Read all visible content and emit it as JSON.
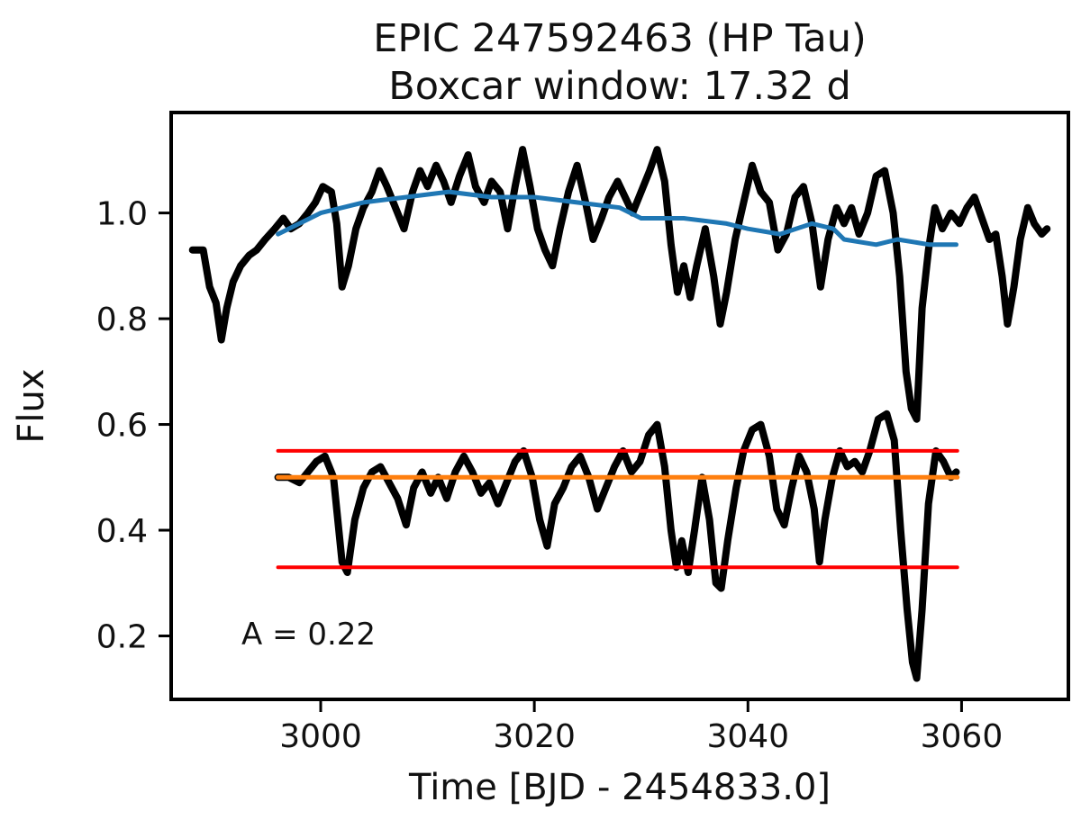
{
  "chart_data": {
    "type": "line",
    "title_lines": [
      "EPIC 247592463 (HP Tau)",
      "Boxcar window: 17.32 d"
    ],
    "xlabel": "Time [BJD - 2454833.0]",
    "ylabel": "Flux",
    "xlim": [
      2986,
      3070
    ],
    "ylim": [
      0.08,
      1.19
    ],
    "xticks": [
      3000,
      3020,
      3040,
      3060
    ],
    "yticks": [
      0.2,
      0.4,
      0.6,
      0.8,
      1.0
    ],
    "xtick_labels": [
      "3000",
      "3020",
      "3040",
      "3060"
    ],
    "ytick_labels": [
      "0.2",
      "0.4",
      "0.6",
      "0.8",
      "1.0"
    ],
    "annotation": "A = 0.22",
    "grid": false,
    "colors": {
      "raw": "#000000",
      "smoothed": "#1f77b4",
      "residual": "#000000",
      "median": "#ff7f0e",
      "percentiles": "#ff0000"
    },
    "series": [
      {
        "role": "raw_light_curve",
        "points": [
          [
            2988.0,
            0.93
          ],
          [
            2989.0,
            0.93
          ],
          [
            2989.6,
            0.86
          ],
          [
            2990.2,
            0.83
          ],
          [
            2990.7,
            0.76
          ],
          [
            2991.2,
            0.82
          ],
          [
            2991.8,
            0.87
          ],
          [
            2992.5,
            0.9
          ],
          [
            2993.3,
            0.92
          ],
          [
            2994.0,
            0.93
          ],
          [
            2994.8,
            0.95
          ],
          [
            2995.7,
            0.97
          ],
          [
            2996.5,
            0.99
          ],
          [
            2997.2,
            0.97
          ],
          [
            2998.0,
            0.98
          ],
          [
            2998.8,
            1.0
          ],
          [
            2999.5,
            1.02
          ],
          [
            3000.2,
            1.05
          ],
          [
            3001.0,
            1.04
          ],
          [
            3001.5,
            0.98
          ],
          [
            3002.0,
            0.86
          ],
          [
            3002.6,
            0.9
          ],
          [
            3003.3,
            0.97
          ],
          [
            3004.0,
            1.01
          ],
          [
            3004.8,
            1.04
          ],
          [
            3005.5,
            1.08
          ],
          [
            3006.2,
            1.05
          ],
          [
            3007.0,
            1.01
          ],
          [
            3007.8,
            0.97
          ],
          [
            3008.6,
            1.04
          ],
          [
            3009.3,
            1.08
          ],
          [
            3010.0,
            1.05
          ],
          [
            3010.8,
            1.09
          ],
          [
            3011.5,
            1.06
          ],
          [
            3012.2,
            1.02
          ],
          [
            3013.0,
            1.07
          ],
          [
            3013.8,
            1.11
          ],
          [
            3014.5,
            1.05
          ],
          [
            3015.3,
            1.02
          ],
          [
            3016.0,
            1.06
          ],
          [
            3016.8,
            1.04
          ],
          [
            3017.5,
            0.97
          ],
          [
            3018.2,
            1.05
          ],
          [
            3018.9,
            1.12
          ],
          [
            3019.6,
            1.05
          ],
          [
            3020.3,
            0.97
          ],
          [
            3021.0,
            0.93
          ],
          [
            3021.7,
            0.9
          ],
          [
            3022.4,
            0.97
          ],
          [
            3023.2,
            1.04
          ],
          [
            3024.0,
            1.09
          ],
          [
            3024.8,
            1.02
          ],
          [
            3025.5,
            0.95
          ],
          [
            3026.3,
            0.99
          ],
          [
            3027.0,
            1.03
          ],
          [
            3027.8,
            1.06
          ],
          [
            3028.5,
            1.03
          ],
          [
            3029.2,
            1.0
          ],
          [
            3030.0,
            1.04
          ],
          [
            3030.8,
            1.08
          ],
          [
            3031.5,
            1.12
          ],
          [
            3032.2,
            1.06
          ],
          [
            3032.8,
            0.94
          ],
          [
            3033.4,
            0.85
          ],
          [
            3034.0,
            0.9
          ],
          [
            3034.6,
            0.84
          ],
          [
            3035.2,
            0.9
          ],
          [
            3036.0,
            0.97
          ],
          [
            3036.8,
            0.88
          ],
          [
            3037.4,
            0.79
          ],
          [
            3038.0,
            0.85
          ],
          [
            3038.8,
            0.95
          ],
          [
            3039.6,
            1.02
          ],
          [
            3040.4,
            1.09
          ],
          [
            3041.2,
            1.04
          ],
          [
            3042.0,
            1.02
          ],
          [
            3042.8,
            0.93
          ],
          [
            3043.6,
            0.96
          ],
          [
            3044.4,
            1.03
          ],
          [
            3045.2,
            1.05
          ],
          [
            3046.0,
            0.98
          ],
          [
            3046.8,
            0.86
          ],
          [
            3047.5,
            0.95
          ],
          [
            3048.3,
            1.01
          ],
          [
            3049.0,
            0.98
          ],
          [
            3049.7,
            1.01
          ],
          [
            3050.4,
            0.96
          ],
          [
            3051.2,
            1.0
          ],
          [
            3052.0,
            1.07
          ],
          [
            3052.8,
            1.08
          ],
          [
            3053.6,
            1.0
          ],
          [
            3054.2,
            0.88
          ],
          [
            3054.8,
            0.7
          ],
          [
            3055.3,
            0.63
          ],
          [
            3055.8,
            0.61
          ],
          [
            3056.3,
            0.82
          ],
          [
            3056.9,
            0.93
          ],
          [
            3057.5,
            1.01
          ],
          [
            3058.2,
            0.97
          ],
          [
            3059.0,
            1.0
          ],
          [
            3059.8,
            0.98
          ],
          [
            3060.5,
            1.01
          ],
          [
            3061.2,
            1.03
          ],
          [
            3061.9,
            0.99
          ],
          [
            3062.6,
            0.95
          ],
          [
            3063.2,
            0.96
          ],
          [
            3063.8,
            0.88
          ],
          [
            3064.3,
            0.79
          ],
          [
            3064.9,
            0.86
          ],
          [
            3065.5,
            0.95
          ],
          [
            3066.2,
            1.01
          ],
          [
            3066.8,
            0.98
          ],
          [
            3067.5,
            0.96
          ],
          [
            3068.0,
            0.97
          ]
        ]
      },
      {
        "role": "boxcar_smoothed",
        "points": [
          [
            2996.0,
            0.96
          ],
          [
            2998.0,
            0.98
          ],
          [
            3000.0,
            1.0
          ],
          [
            3004.0,
            1.02
          ],
          [
            3008.0,
            1.03
          ],
          [
            3012.0,
            1.04
          ],
          [
            3016.0,
            1.03
          ],
          [
            3020.0,
            1.03
          ],
          [
            3024.0,
            1.02
          ],
          [
            3028.0,
            1.01
          ],
          [
            3030.0,
            0.99
          ],
          [
            3034.0,
            0.99
          ],
          [
            3038.0,
            0.98
          ],
          [
            3040.0,
            0.97
          ],
          [
            3043.0,
            0.96
          ],
          [
            3046.0,
            0.98
          ],
          [
            3048.0,
            0.97
          ],
          [
            3049.0,
            0.95
          ],
          [
            3052.0,
            0.94
          ],
          [
            3054.0,
            0.95
          ],
          [
            3057.0,
            0.94
          ],
          [
            3059.5,
            0.94
          ]
        ]
      },
      {
        "role": "residual_light_curve",
        "points": [
          [
            2996.0,
            0.5
          ],
          [
            2997.0,
            0.5
          ],
          [
            2998.0,
            0.49
          ],
          [
            2998.8,
            0.51
          ],
          [
            2999.6,
            0.53
          ],
          [
            3000.4,
            0.54
          ],
          [
            3001.2,
            0.5
          ],
          [
            3002.0,
            0.34
          ],
          [
            3002.5,
            0.32
          ],
          [
            3003.2,
            0.42
          ],
          [
            3004.0,
            0.48
          ],
          [
            3004.8,
            0.51
          ],
          [
            3005.6,
            0.52
          ],
          [
            3006.4,
            0.49
          ],
          [
            3007.2,
            0.46
          ],
          [
            3008.0,
            0.41
          ],
          [
            3008.7,
            0.48
          ],
          [
            3009.5,
            0.51
          ],
          [
            3010.3,
            0.47
          ],
          [
            3011.0,
            0.5
          ],
          [
            3011.8,
            0.46
          ],
          [
            3012.6,
            0.51
          ],
          [
            3013.4,
            0.54
          ],
          [
            3014.2,
            0.51
          ],
          [
            3015.0,
            0.47
          ],
          [
            3015.8,
            0.49
          ],
          [
            3016.6,
            0.45
          ],
          [
            3017.4,
            0.49
          ],
          [
            3018.2,
            0.53
          ],
          [
            3019.0,
            0.55
          ],
          [
            3019.8,
            0.5
          ],
          [
            3020.5,
            0.42
          ],
          [
            3021.2,
            0.37
          ],
          [
            3021.9,
            0.45
          ],
          [
            3022.7,
            0.48
          ],
          [
            3023.5,
            0.52
          ],
          [
            3024.3,
            0.54
          ],
          [
            3025.1,
            0.5
          ],
          [
            3025.9,
            0.44
          ],
          [
            3026.7,
            0.48
          ],
          [
            3027.5,
            0.52
          ],
          [
            3028.3,
            0.55
          ],
          [
            3029.1,
            0.51
          ],
          [
            3029.9,
            0.53
          ],
          [
            3030.7,
            0.58
          ],
          [
            3031.5,
            0.6
          ],
          [
            3032.2,
            0.52
          ],
          [
            3032.8,
            0.4
          ],
          [
            3033.3,
            0.33
          ],
          [
            3033.8,
            0.38
          ],
          [
            3034.4,
            0.32
          ],
          [
            3035.0,
            0.4
          ],
          [
            3035.7,
            0.5
          ],
          [
            3036.4,
            0.42
          ],
          [
            3037.0,
            0.3
          ],
          [
            3037.5,
            0.29
          ],
          [
            3038.1,
            0.38
          ],
          [
            3038.9,
            0.48
          ],
          [
            3039.6,
            0.55
          ],
          [
            3040.4,
            0.59
          ],
          [
            3041.2,
            0.6
          ],
          [
            3042.0,
            0.54
          ],
          [
            3042.7,
            0.44
          ],
          [
            3043.4,
            0.41
          ],
          [
            3044.1,
            0.48
          ],
          [
            3044.8,
            0.54
          ],
          [
            3045.5,
            0.51
          ],
          [
            3046.2,
            0.44
          ],
          [
            3046.7,
            0.34
          ],
          [
            3047.2,
            0.42
          ],
          [
            3047.9,
            0.5
          ],
          [
            3048.6,
            0.55
          ],
          [
            3049.3,
            0.52
          ],
          [
            3050.0,
            0.53
          ],
          [
            3050.7,
            0.51
          ],
          [
            3051.4,
            0.55
          ],
          [
            3052.2,
            0.61
          ],
          [
            3053.0,
            0.62
          ],
          [
            3053.7,
            0.57
          ],
          [
            3054.3,
            0.4
          ],
          [
            3054.9,
            0.25
          ],
          [
            3055.4,
            0.15
          ],
          [
            3055.8,
            0.12
          ],
          [
            3056.3,
            0.25
          ],
          [
            3056.9,
            0.45
          ],
          [
            3057.6,
            0.55
          ],
          [
            3058.3,
            0.53
          ],
          [
            3059.0,
            0.5
          ],
          [
            3059.5,
            0.51
          ]
        ]
      },
      {
        "role": "median",
        "points": [
          [
            2996.0,
            0.5
          ],
          [
            3059.6,
            0.5
          ]
        ]
      },
      {
        "role": "upper_percentile",
        "points": [
          [
            2996.0,
            0.55
          ],
          [
            3059.6,
            0.55
          ]
        ]
      },
      {
        "role": "lower_percentile",
        "points": [
          [
            2996.0,
            0.33
          ],
          [
            3059.6,
            0.33
          ]
        ]
      }
    ]
  }
}
